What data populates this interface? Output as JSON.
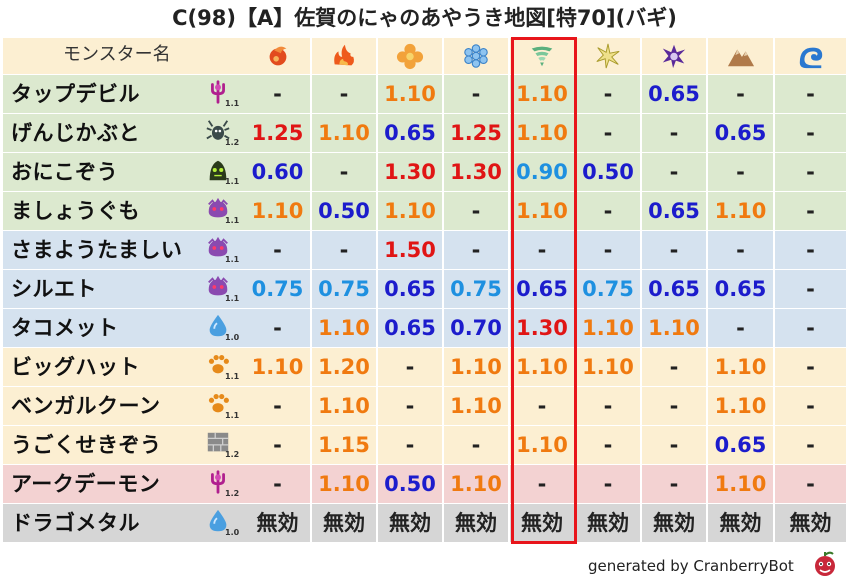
{
  "title": "C(98)【A】佐賀のにゃのあやうき地図[特70](バギ)",
  "header": {
    "name_label": "モンスター名",
    "elements": [
      {
        "icon": "mera-fire-icon",
        "color": "#e04a20"
      },
      {
        "icon": "gira-flame-icon",
        "color": "#f06a1a"
      },
      {
        "icon": "io-explosion-icon",
        "color": "#f2a23a"
      },
      {
        "icon": "hyado-ice-icon",
        "color": "#5aa0e0"
      },
      {
        "icon": "bagi-wind-icon",
        "color": "#6cbf8a"
      },
      {
        "icon": "dein-lightning-icon",
        "color": "#e8d84a"
      },
      {
        "icon": "doruma-dark-icon",
        "color": "#5a2a9a"
      },
      {
        "icon": "jibaria-earth-icon",
        "color": "#b07a4a"
      },
      {
        "icon": "aqua-water-icon",
        "color": "#2a78d0"
      }
    ]
  },
  "colors": {
    "val_orange": "#f07a10",
    "val_red": "#e01515",
    "val_blue": "#1c1ccc",
    "val_lightblue": "#1e90e0",
    "val_dash": "#222222",
    "highlight": "#e8151b"
  },
  "rows": [
    {
      "name": "タップデビル",
      "icon": "devil-icon",
      "level": "1.1",
      "bg": "#dce9cf",
      "values": [
        {
          "text": "-",
          "tone": "dash"
        },
        {
          "text": "-",
          "tone": "dash"
        },
        {
          "text": "1.10",
          "tone": "orange"
        },
        {
          "text": "-",
          "tone": "dash"
        },
        {
          "text": "1.10",
          "tone": "orange"
        },
        {
          "text": "-",
          "tone": "dash"
        },
        {
          "text": "0.65",
          "tone": "blue"
        },
        {
          "text": "-",
          "tone": "dash"
        },
        {
          "text": "-",
          "tone": "dash"
        }
      ]
    },
    {
      "name": "げんじかぶと",
      "icon": "insect-icon",
      "level": "1.2",
      "bg": "#dce9cf",
      "values": [
        {
          "text": "1.25",
          "tone": "red"
        },
        {
          "text": "1.10",
          "tone": "orange"
        },
        {
          "text": "0.65",
          "tone": "blue"
        },
        {
          "text": "1.25",
          "tone": "red"
        },
        {
          "text": "1.10",
          "tone": "orange"
        },
        {
          "text": "-",
          "tone": "dash"
        },
        {
          "text": "-",
          "tone": "dash"
        },
        {
          "text": "0.65",
          "tone": "blue"
        },
        {
          "text": "-",
          "tone": "dash"
        }
      ]
    },
    {
      "name": "おにこぞう",
      "icon": "undead-icon",
      "level": "1.1",
      "bg": "#dce9cf",
      "values": [
        {
          "text": "0.60",
          "tone": "blue"
        },
        {
          "text": "-",
          "tone": "dash"
        },
        {
          "text": "1.30",
          "tone": "red"
        },
        {
          "text": "1.30",
          "tone": "red"
        },
        {
          "text": "0.90",
          "tone": "lightblue"
        },
        {
          "text": "0.50",
          "tone": "blue"
        },
        {
          "text": "-",
          "tone": "dash"
        },
        {
          "text": "-",
          "tone": "dash"
        },
        {
          "text": "-",
          "tone": "dash"
        }
      ]
    },
    {
      "name": "ましょうぐも",
      "icon": "zombie-icon",
      "level": "1.1",
      "bg": "#dce9cf",
      "values": [
        {
          "text": "1.10",
          "tone": "orange"
        },
        {
          "text": "0.50",
          "tone": "blue"
        },
        {
          "text": "1.10",
          "tone": "orange"
        },
        {
          "text": "-",
          "tone": "dash"
        },
        {
          "text": "1.10",
          "tone": "orange"
        },
        {
          "text": "-",
          "tone": "dash"
        },
        {
          "text": "0.65",
          "tone": "blue"
        },
        {
          "text": "1.10",
          "tone": "orange"
        },
        {
          "text": "-",
          "tone": "dash"
        }
      ]
    },
    {
      "name": "さまようたましい",
      "icon": "zombie-icon",
      "level": "1.1",
      "bg": "#d5e2ef",
      "values": [
        {
          "text": "-",
          "tone": "dash"
        },
        {
          "text": "-",
          "tone": "dash"
        },
        {
          "text": "1.50",
          "tone": "red"
        },
        {
          "text": "-",
          "tone": "dash"
        },
        {
          "text": "-",
          "tone": "dash"
        },
        {
          "text": "-",
          "tone": "dash"
        },
        {
          "text": "-",
          "tone": "dash"
        },
        {
          "text": "-",
          "tone": "dash"
        },
        {
          "text": "-",
          "tone": "dash"
        }
      ]
    },
    {
      "name": "シルエト",
      "icon": "zombie-icon",
      "level": "1.1",
      "bg": "#d5e2ef",
      "values": [
        {
          "text": "0.75",
          "tone": "lightblue"
        },
        {
          "text": "0.75",
          "tone": "lightblue"
        },
        {
          "text": "0.65",
          "tone": "blue"
        },
        {
          "text": "0.75",
          "tone": "lightblue"
        },
        {
          "text": "0.65",
          "tone": "blue"
        },
        {
          "text": "0.75",
          "tone": "lightblue"
        },
        {
          "text": "0.65",
          "tone": "blue"
        },
        {
          "text": "0.65",
          "tone": "blue"
        },
        {
          "text": "-",
          "tone": "dash"
        }
      ]
    },
    {
      "name": "タコメット",
      "icon": "material-icon",
      "level": "1.0",
      "bg": "#d5e2ef",
      "values": [
        {
          "text": "-",
          "tone": "dash"
        },
        {
          "text": "1.10",
          "tone": "orange"
        },
        {
          "text": "0.65",
          "tone": "blue"
        },
        {
          "text": "0.70",
          "tone": "blue"
        },
        {
          "text": "1.30",
          "tone": "red"
        },
        {
          "text": "1.10",
          "tone": "orange"
        },
        {
          "text": "1.10",
          "tone": "orange"
        },
        {
          "text": "-",
          "tone": "dash"
        },
        {
          "text": "-",
          "tone": "dash"
        }
      ]
    },
    {
      "name": "ビッグハット",
      "icon": "beast-icon",
      "level": "1.1",
      "bg": "#fcefd2",
      "values": [
        {
          "text": "1.10",
          "tone": "orange"
        },
        {
          "text": "1.20",
          "tone": "orange"
        },
        {
          "text": "-",
          "tone": "dash"
        },
        {
          "text": "1.10",
          "tone": "orange"
        },
        {
          "text": "1.10",
          "tone": "orange"
        },
        {
          "text": "1.10",
          "tone": "orange"
        },
        {
          "text": "-",
          "tone": "dash"
        },
        {
          "text": "1.10",
          "tone": "orange"
        },
        {
          "text": "-",
          "tone": "dash"
        }
      ]
    },
    {
      "name": "ベンガルクーン",
      "icon": "beast-icon",
      "level": "1.1",
      "bg": "#fcefd2",
      "values": [
        {
          "text": "-",
          "tone": "dash"
        },
        {
          "text": "1.10",
          "tone": "orange"
        },
        {
          "text": "-",
          "tone": "dash"
        },
        {
          "text": "1.10",
          "tone": "orange"
        },
        {
          "text": "-",
          "tone": "dash"
        },
        {
          "text": "-",
          "tone": "dash"
        },
        {
          "text": "-",
          "tone": "dash"
        },
        {
          "text": "1.10",
          "tone": "orange"
        },
        {
          "text": "-",
          "tone": "dash"
        }
      ]
    },
    {
      "name": "うごくせきぞう",
      "icon": "machine-icon",
      "level": "1.2",
      "bg": "#fcefd2",
      "values": [
        {
          "text": "-",
          "tone": "dash"
        },
        {
          "text": "1.15",
          "tone": "orange"
        },
        {
          "text": "-",
          "tone": "dash"
        },
        {
          "text": "-",
          "tone": "dash"
        },
        {
          "text": "1.10",
          "tone": "orange"
        },
        {
          "text": "-",
          "tone": "dash"
        },
        {
          "text": "-",
          "tone": "dash"
        },
        {
          "text": "0.65",
          "tone": "blue"
        },
        {
          "text": "-",
          "tone": "dash"
        }
      ]
    },
    {
      "name": "アークデーモン",
      "icon": "devil-icon",
      "level": "1.2",
      "bg": "#f3d2d2",
      "values": [
        {
          "text": "-",
          "tone": "dash"
        },
        {
          "text": "1.10",
          "tone": "orange"
        },
        {
          "text": "0.50",
          "tone": "blue"
        },
        {
          "text": "1.10",
          "tone": "orange"
        },
        {
          "text": "-",
          "tone": "dash"
        },
        {
          "text": "-",
          "tone": "dash"
        },
        {
          "text": "-",
          "tone": "dash"
        },
        {
          "text": "1.10",
          "tone": "orange"
        },
        {
          "text": "-",
          "tone": "dash"
        }
      ]
    },
    {
      "name": "ドラゴメタル",
      "icon": "material-icon",
      "level": "1.0",
      "bg": "#d6d6d6",
      "values": [
        {
          "text": "無効",
          "tone": "dash"
        },
        {
          "text": "無効",
          "tone": "dash"
        },
        {
          "text": "無効",
          "tone": "dash"
        },
        {
          "text": "無効",
          "tone": "dash"
        },
        {
          "text": "無効",
          "tone": "dash"
        },
        {
          "text": "無効",
          "tone": "dash"
        },
        {
          "text": "無効",
          "tone": "dash"
        },
        {
          "text": "無効",
          "tone": "dash"
        },
        {
          "text": "無効",
          "tone": "dash"
        }
      ]
    }
  ],
  "footer": {
    "text": "generated by CranberryBot",
    "logo_icon": "cranberry-bot-logo-icon"
  }
}
